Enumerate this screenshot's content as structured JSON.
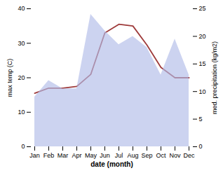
{
  "chart_data": {
    "type": "line",
    "xlabel": "date (month)",
    "ylabel": "max temp (C)",
    "y2label": "med. precipitation (kg/m2)",
    "categories": [
      "Jan",
      "Feb",
      "Mar",
      "Apr",
      "May",
      "Jun",
      "Jul",
      "Aug",
      "Sep",
      "Oct",
      "Nov",
      "Dec"
    ],
    "series": [
      {
        "type": "area",
        "axis": "y2",
        "color": "#b0bce8",
        "values": [
          9.0,
          12.0,
          10.5,
          10.5,
          24.0,
          21.0,
          18.5,
          20.0,
          18.0,
          13.0,
          19.5,
          13.0
        ]
      },
      {
        "type": "line",
        "color": "#9e3a3a",
        "values": [
          15.5,
          17.0,
          17.0,
          17.5,
          21.0,
          33.0,
          35.5,
          35.0,
          29.5,
          23.0,
          20.0,
          20.0
        ]
      }
    ],
    "ylim": [
      0,
      40
    ],
    "yticks": [
      0,
      10,
      20,
      30,
      40
    ],
    "y2lim": [
      0,
      25
    ],
    "y2ticks": [
      0,
      5,
      10,
      15,
      20,
      25
    ],
    "grid": false
  }
}
